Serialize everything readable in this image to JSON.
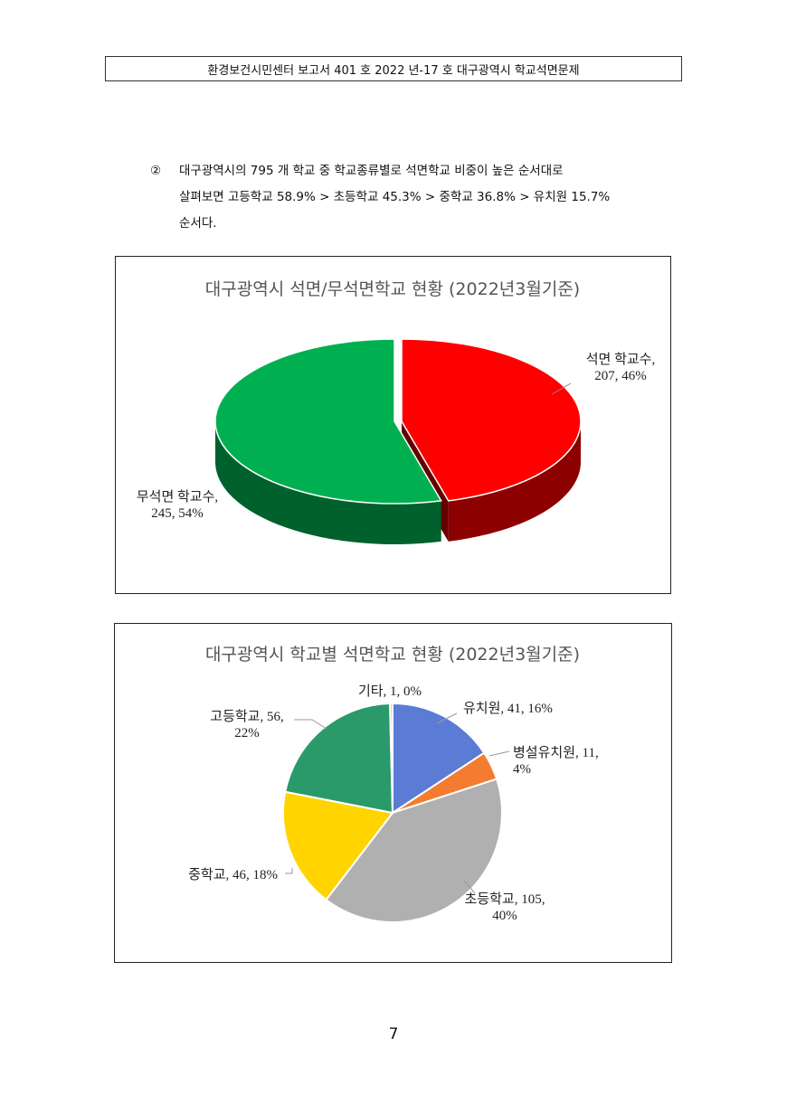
{
  "header": {
    "text": "환경보건시민센터 보고서 401 호 2022 년-17 호 대구광역시 학교석면문제"
  },
  "paragraph": {
    "marker": "②",
    "lines": [
      "대구광역시의 795 개 학교 중 학교종류별로 석면학교 비중이 높은 순서대로",
      "살펴보면 고등학교 58.9% > 초등학교 45.3% > 중학교 36.8% > 유치원 15.7%",
      "순서다."
    ]
  },
  "chart_data": [
    {
      "type": "pie",
      "style": "3d",
      "title": "대구광역시 석면/무석면학교 현황 (2022년3월기준)",
      "slices": [
        {
          "name": "석면 학교수",
          "value": 207,
          "percent": 46,
          "color": "#ff0000",
          "label_lines": [
            "석면 학교수,",
            "207, 46%"
          ]
        },
        {
          "name": "무석면 학교수",
          "value": 245,
          "percent": 54,
          "color": "#00b050",
          "label_lines": [
            "무석면 학교수,",
            "245, 54%"
          ]
        }
      ]
    },
    {
      "type": "pie",
      "title": "대구광역시 학교별 석면학교 현황 (2022년3월기준)",
      "slices": [
        {
          "name": "유치원",
          "value": 41,
          "percent": 16,
          "color": "#5b7bd5",
          "label_lines": [
            "유치원, 41, 16%"
          ]
        },
        {
          "name": "병설유치원",
          "value": 11,
          "percent": 4,
          "color": "#f47c30",
          "label_lines": [
            "병설유치원, 11,",
            "4%"
          ]
        },
        {
          "name": "초등학교",
          "value": 105,
          "percent": 40,
          "color": "#b0b0b0",
          "label_lines": [
            "초등학교, 105,",
            "40%"
          ]
        },
        {
          "name": "중학교",
          "value": 46,
          "percent": 18,
          "color": "#ffd400",
          "label_lines": [
            "중학교, 46, 18%"
          ]
        },
        {
          "name": "고등학교",
          "value": 56,
          "percent": 22,
          "color": "#2a9a6a",
          "label_lines": [
            "고등학교, 56,",
            "22%"
          ]
        },
        {
          "name": "기타",
          "value": 1,
          "percent": 0,
          "color": "#c8c8c8",
          "label_lines": [
            "기타, 1, 0%"
          ]
        }
      ]
    }
  ],
  "page_number": "7"
}
